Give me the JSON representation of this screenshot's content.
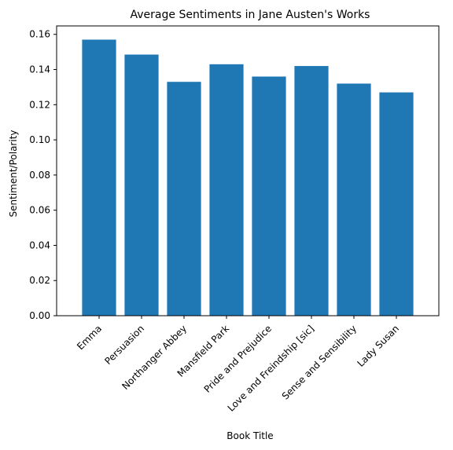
{
  "chart_data": {
    "type": "bar",
    "title": "Average Sentiments in Jane Austen's Works",
    "xlabel": "Book Title",
    "ylabel": "Sentiment/Polarity",
    "categories": [
      "Emma",
      "Persuasion",
      "Northanger Abbey",
      "Mansfield Park",
      "Pride and Prejudice",
      "Love and Freindship [sic]",
      "Sense and Sensibility",
      "Lady Susan"
    ],
    "values": [
      0.157,
      0.1485,
      0.133,
      0.143,
      0.136,
      0.142,
      0.132,
      0.127
    ],
    "ylim": [
      0,
      0.1648
    ],
    "yticks": [
      "0.00",
      "0.02",
      "0.04",
      "0.06",
      "0.08",
      "0.10",
      "0.12",
      "0.14",
      "0.16"
    ],
    "bar_color": "#1f77b4",
    "grid": false
  }
}
